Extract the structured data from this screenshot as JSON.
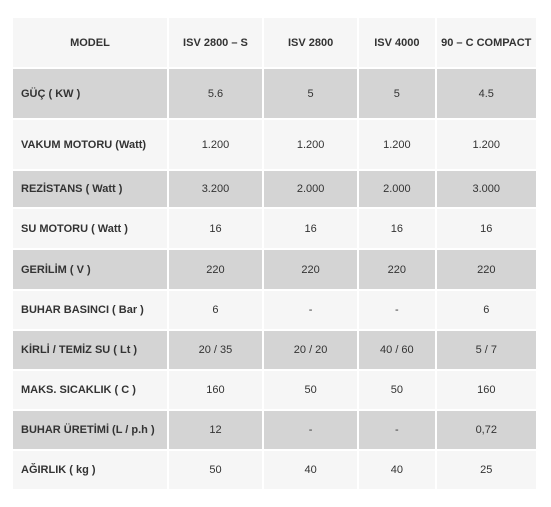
{
  "table": {
    "headers": [
      "MODEL",
      "ISV 2800 – S",
      "ISV 2800",
      "ISV 4000",
      "90 – C COMPACT"
    ],
    "rows": [
      {
        "label": "GÜÇ ( KW )",
        "values": [
          "5.6",
          "5",
          "5",
          "4.5"
        ]
      },
      {
        "label": "VAKUM MOTORU (Watt)",
        "values": [
          "1.200",
          "1.200",
          "1.200",
          "1.200"
        ]
      },
      {
        "label": "REZİSTANS ( Watt )",
        "values": [
          "3.200",
          "2.000",
          "2.000",
          "3.000"
        ]
      },
      {
        "label": "SU MOTORU ( Watt )",
        "values": [
          "16",
          "16",
          "16",
          "16"
        ]
      },
      {
        "label": "GERİLİM ( V )",
        "values": [
          "220",
          "220",
          "220",
          "220"
        ]
      },
      {
        "label": "BUHAR BASINCI ( Bar )",
        "values": [
          "6",
          "-",
          "-",
          "6"
        ]
      },
      {
        "label": "KİRLİ / TEMİZ SU ( Lt )",
        "values": [
          "20  / 35",
          "20 / 20",
          "40 / 60",
          "5 / 7"
        ]
      },
      {
        "label": "MAKS. SICAKLIK ( C )",
        "values": [
          "160",
          "50",
          "50",
          "160"
        ]
      },
      {
        "label": "BUHAR ÜRETİMİ (L / p.h )",
        "values": [
          "12",
          "-",
          "-",
          "0,72"
        ]
      },
      {
        "label": "AĞIRLIK ( kg )",
        "values": [
          "50",
          "40",
          "40",
          "25"
        ]
      }
    ]
  }
}
